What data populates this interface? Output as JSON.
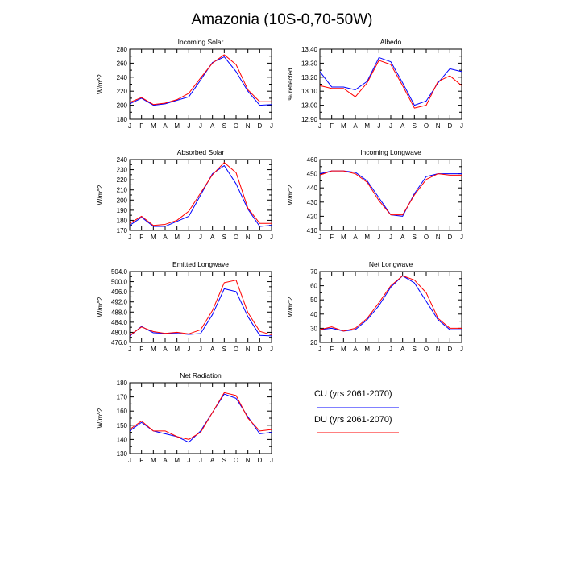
{
  "title": "Amazonia (10S-0,70-50W)",
  "legend": [
    {
      "label": "CU (yrs 2061-2070)",
      "color": "#0000ff"
    },
    {
      "label": "DU (yrs 2061-2070)",
      "color": "#ff0000"
    }
  ],
  "chart_data": [
    {
      "type": "line",
      "title": "Incoming Solar",
      "ylabel": "W/m^2",
      "ylim": [
        180,
        280
      ],
      "yticks": [
        "180",
        "200",
        "220",
        "240",
        "260",
        "280"
      ],
      "categories": [
        "J",
        "F",
        "M",
        "A",
        "M",
        "J",
        "J",
        "A",
        "S",
        "O",
        "N",
        "D",
        "J"
      ],
      "series": [
        {
          "name": "CU (yrs 2061-2070)",
          "color": "#0000ff",
          "values": [
            202,
            210,
            200,
            202,
            207,
            212,
            236,
            261,
            269,
            248,
            220,
            200,
            201
          ]
        },
        {
          "name": "DU (yrs 2061-2070)",
          "color": "#ff0000",
          "values": [
            204,
            211,
            201,
            203,
            208,
            217,
            239,
            260,
            272,
            258,
            222,
            205,
            205
          ]
        }
      ]
    },
    {
      "type": "line",
      "title": "Albedo",
      "ylabel": "% reflected",
      "ylim": [
        12.9,
        13.4
      ],
      "yticks": [
        "12.90",
        "13.00",
        "13.10",
        "13.20",
        "13.30",
        "13.40"
      ],
      "categories": [
        "J",
        "F",
        "M",
        "A",
        "M",
        "J",
        "J",
        "A",
        "S",
        "O",
        "N",
        "D",
        "J"
      ],
      "series": [
        {
          "name": "CU (yrs 2061-2070)",
          "color": "#0000ff",
          "values": [
            13.24,
            13.13,
            13.13,
            13.11,
            13.17,
            13.34,
            13.31,
            13.16,
            13.0,
            13.03,
            13.16,
            13.26,
            13.24
          ]
        },
        {
          "name": "DU (yrs 2061-2070)",
          "color": "#ff0000",
          "values": [
            13.14,
            13.12,
            13.12,
            13.06,
            13.16,
            13.32,
            13.29,
            13.14,
            12.98,
            13.0,
            13.17,
            13.21,
            13.14
          ]
        }
      ]
    },
    {
      "type": "line",
      "title": "Absorbed Solar",
      "ylabel": "W/m^2",
      "ylim": [
        170,
        240
      ],
      "yticks": [
        "170",
        "180",
        "190",
        "200",
        "210",
        "220",
        "230",
        "240"
      ],
      "categories": [
        "J",
        "F",
        "M",
        "A",
        "M",
        "J",
        "J",
        "A",
        "S",
        "O",
        "N",
        "D",
        "J"
      ],
      "series": [
        {
          "name": "CU (yrs 2061-2070)",
          "color": "#0000ff",
          "values": [
            175,
            183,
            174,
            174,
            179,
            184,
            205,
            226,
            234,
            216,
            191,
            174,
            175
          ]
        },
        {
          "name": "DU (yrs 2061-2070)",
          "color": "#ff0000",
          "values": [
            177,
            184,
            175,
            176,
            180,
            189,
            207,
            225,
            237,
            227,
            192,
            177,
            177
          ]
        }
      ]
    },
    {
      "type": "line",
      "title": "Incoming Longwave",
      "ylabel": "W/m^2",
      "ylim": [
        410,
        460
      ],
      "yticks": [
        "410",
        "420",
        "430",
        "440",
        "450",
        "460"
      ],
      "categories": [
        "J",
        "F",
        "M",
        "A",
        "M",
        "J",
        "J",
        "A",
        "S",
        "O",
        "N",
        "D",
        "J"
      ],
      "series": [
        {
          "name": "CU (yrs 2061-2070)",
          "color": "#0000ff",
          "values": [
            450,
            452,
            452,
            451,
            445,
            433,
            421,
            420,
            436,
            448,
            450,
            450,
            450
          ]
        },
        {
          "name": "DU (yrs 2061-2070)",
          "color": "#ff0000",
          "values": [
            449,
            452,
            452,
            450,
            444,
            431,
            421,
            421,
            435,
            446,
            450,
            449,
            449
          ]
        }
      ]
    },
    {
      "type": "line",
      "title": "Emitted Longwave",
      "ylabel": "W/m^2",
      "ylim": [
        476,
        504
      ],
      "yticks": [
        "476.0",
        "480.0",
        "484.0",
        "488.0",
        "492.0",
        "496.0",
        "500.0",
        "504.0"
      ],
      "categories": [
        "J",
        "F",
        "M",
        "A",
        "M",
        "J",
        "J",
        "A",
        "S",
        "O",
        "N",
        "D",
        "J"
      ],
      "series": [
        {
          "name": "CU (yrs 2061-2070)",
          "color": "#0000ff",
          "values": [
            478.5,
            482.3,
            479.8,
            479.6,
            479.6,
            479.2,
            479.5,
            487.0,
            497.2,
            496.1,
            486.2,
            478.8,
            478.6
          ]
        },
        {
          "name": "DU (yrs 2061-2070)",
          "color": "#ff0000",
          "values": [
            478.8,
            482.1,
            480.3,
            479.6,
            480.0,
            479.4,
            481.0,
            488.6,
            499.6,
            500.6,
            487.8,
            480.4,
            479.0
          ]
        }
      ]
    },
    {
      "type": "line",
      "title": "Net Longwave",
      "ylabel": "W/m^2",
      "ylim": [
        20,
        70
      ],
      "yticks": [
        "20",
        "30",
        "40",
        "50",
        "60",
        "70"
      ],
      "categories": [
        "J",
        "F",
        "M",
        "A",
        "M",
        "J",
        "J",
        "A",
        "S",
        "O",
        "N",
        "D",
        "J"
      ],
      "series": [
        {
          "name": "CU (yrs 2061-2070)",
          "color": "#0000ff",
          "values": [
            29,
            30,
            28,
            29,
            36,
            46,
            59,
            67,
            62,
            49,
            36,
            29,
            29
          ]
        },
        {
          "name": "DU (yrs 2061-2070)",
          "color": "#ff0000",
          "values": [
            29,
            31,
            28,
            30,
            37,
            48,
            60,
            67,
            64,
            55,
            37,
            30,
            30
          ]
        }
      ]
    },
    {
      "type": "line",
      "title": "Net Radiation",
      "ylabel": "W/m^2",
      "ylim": [
        130,
        180
      ],
      "yticks": [
        "130",
        "140",
        "150",
        "160",
        "170",
        "180"
      ],
      "categories": [
        "J",
        "F",
        "M",
        "A",
        "M",
        "J",
        "J",
        "A",
        "S",
        "O",
        "N",
        "D",
        "J"
      ],
      "series": [
        {
          "name": "CU (yrs 2061-2070)",
          "color": "#0000ff",
          "values": [
            146,
            152,
            146,
            144,
            142,
            138,
            146,
            159,
            172,
            169,
            156,
            144,
            145
          ]
        },
        {
          "name": "DU (yrs 2061-2070)",
          "color": "#ff0000",
          "values": [
            147,
            153,
            146,
            146,
            142,
            140,
            145,
            159,
            173,
            171,
            155,
            146,
            147
          ]
        }
      ]
    }
  ]
}
